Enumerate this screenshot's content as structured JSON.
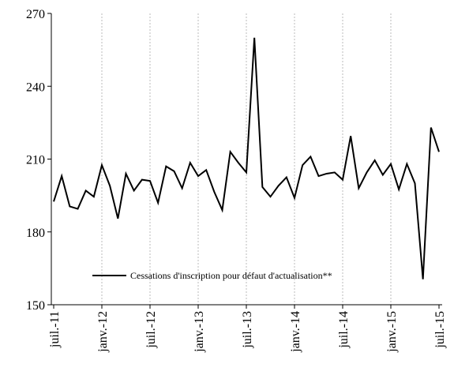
{
  "chart_data": {
    "type": "line",
    "categories": [
      "juil.-11",
      null,
      null,
      null,
      null,
      null,
      "janv.-12",
      null,
      null,
      null,
      null,
      null,
      "juil.-12",
      null,
      null,
      null,
      null,
      null,
      "janv.-13",
      null,
      null,
      null,
      null,
      null,
      "juil.-13",
      null,
      null,
      null,
      null,
      null,
      "janv.-14",
      null,
      null,
      null,
      null,
      null,
      "juil.-14",
      null,
      null,
      null,
      null,
      null,
      "janv.-15",
      null,
      null,
      null,
      null,
      null,
      "juil.-15"
    ],
    "series": [
      {
        "name": "Cessations d'inscription pour défaut d'actualisation**",
        "color": "#000000",
        "values": [
          192.5,
          203,
          190.5,
          189.5,
          197,
          194.5,
          207.5,
          199,
          185.5,
          204,
          197,
          201.5,
          201,
          192,
          207,
          205,
          198,
          208.5,
          203,
          205.5,
          196.5,
          189,
          213,
          208.5,
          204.5,
          260,
          198.5,
          194.5,
          199,
          202.5,
          194,
          207.5,
          211,
          203,
          204,
          204.5,
          201.5,
          219.5,
          198,
          204.5,
          209.5,
          203.5,
          208,
          197.5,
          208,
          200,
          160.5,
          223,
          213
        ]
      }
    ],
    "ylim": [
      150,
      270
    ],
    "yticks": [
      150,
      180,
      210,
      240,
      270
    ],
    "grid": true,
    "legend": "bottom"
  }
}
